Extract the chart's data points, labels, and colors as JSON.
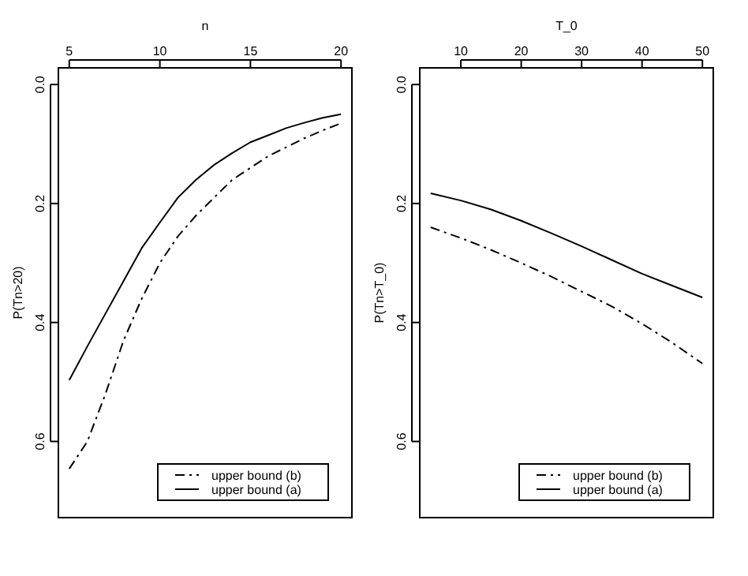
{
  "chart_data": [
    {
      "type": "line",
      "xlabel": "n",
      "ylabel": "P(Tn>20)",
      "x": [
        5,
        6,
        7,
        8,
        9,
        10,
        11,
        12,
        13,
        14,
        15,
        16,
        17,
        18,
        19,
        20
      ],
      "xlim": [
        4.4,
        20.6
      ],
      "xticks": [
        5,
        10,
        15,
        20
      ],
      "ylim": [
        0.728,
        -0.028
      ],
      "yticks": [
        {
          "value": 0,
          "label": "0.0"
        },
        {
          "value": 0.2,
          "label": "0.2"
        },
        {
          "value": 0.4,
          "label": "0.4"
        },
        {
          "value": 0.6,
          "label": "0.6"
        }
      ],
      "legend": "bottom right",
      "grid": false,
      "series": [
        {
          "name": "upper bound (b)",
          "color": "#000000",
          "line_style": "dashed",
          "values": [
            0.646,
            0.6,
            0.52,
            0.43,
            0.36,
            0.3,
            0.255,
            0.22,
            0.19,
            0.16,
            0.14,
            0.12,
            0.105,
            0.09,
            0.077,
            0.065
          ]
        },
        {
          "name": "upper bound (a)",
          "color": "#000000",
          "line_style": "solid",
          "values": [
            0.497,
            0.44,
            0.385,
            0.33,
            0.275,
            0.232,
            0.19,
            0.16,
            0.135,
            0.115,
            0.097,
            0.085,
            0.073,
            0.064,
            0.056,
            0.05
          ]
        }
      ]
    },
    {
      "type": "line",
      "xlabel": "T_0",
      "ylabel": "P(Tn>T_0)",
      "x": [
        5,
        10,
        15,
        20,
        25,
        30,
        35,
        40,
        45,
        50
      ],
      "xlim": [
        3.2,
        51.8
      ],
      "xticks": [
        10,
        20,
        30,
        40,
        50
      ],
      "ylim": [
        0.728,
        -0.028
      ],
      "yticks": [
        {
          "value": 0,
          "label": "0.0"
        },
        {
          "value": 0.2,
          "label": "0.2"
        },
        {
          "value": 0.4,
          "label": "0.4"
        },
        {
          "value": 0.6,
          "label": "0.6"
        }
      ],
      "legend": "bottom right",
      "grid": false,
      "series": [
        {
          "name": "upper bound (b)",
          "color": "#000000",
          "line_style": "dashed",
          "values": [
            0.24,
            0.258,
            0.278,
            0.3,
            0.323,
            0.348,
            0.373,
            0.402,
            0.434,
            0.469
          ]
        },
        {
          "name": "upper bound (a)",
          "color": "#000000",
          "line_style": "solid",
          "values": [
            0.183,
            0.195,
            0.21,
            0.229,
            0.25,
            0.272,
            0.295,
            0.318,
            0.338,
            0.358
          ]
        }
      ]
    }
  ]
}
